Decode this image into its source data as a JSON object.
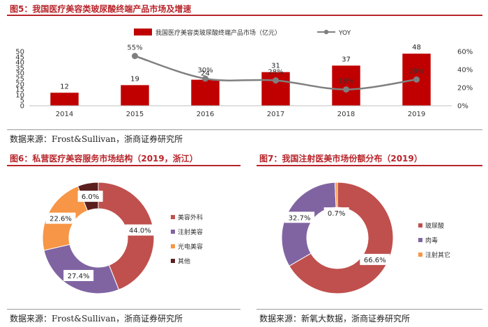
{
  "figures": {
    "fig5": {
      "title": "图5：我国医疗美容类玻尿酸终端产品市场及增速",
      "source": "数据来源：Frost&Sullivan，浙商证券研究所"
    },
    "fig6": {
      "title": "图6：私营医疗美容服务市场结构（2019，浙江）",
      "source": "数据来源：Frost&Sullivan，浙商证券研究所"
    },
    "fig7": {
      "title": "图7：我国注射医美市场份额分布（2019）",
      "source": "数据来源：新氧大数据，浙商证券研究所"
    }
  },
  "chart_data": [
    {
      "type": "bar",
      "categories": [
        "2014",
        "2015",
        "2016",
        "2017",
        "2018",
        "2019"
      ],
      "series": [
        {
          "name": "我国医疗美容类玻尿酸终端产品市场（亿元）",
          "kind": "bar",
          "axis": "left",
          "values": [
            12,
            19,
            24,
            31,
            37,
            48
          ],
          "labels": [
            "12",
            "19",
            "24",
            "31",
            "37",
            "48"
          ],
          "color": "#c00000"
        },
        {
          "name": "YOY",
          "kind": "line",
          "axis": "right",
          "values": [
            null,
            55,
            30,
            28,
            18,
            29
          ],
          "labels": [
            "",
            "55%",
            "30%",
            "28%",
            "18%",
            "29%"
          ],
          "color": "#7f7f7f"
        }
      ],
      "y_left": {
        "min": 0,
        "max": 50,
        "ticks": [
          "0",
          "5",
          "10",
          "15",
          "20",
          "25",
          "30",
          "35",
          "40",
          "45",
          "50"
        ]
      },
      "y_right": {
        "min": 0,
        "max": 60,
        "ticks": [
          "0%",
          "20%",
          "40%",
          "60%"
        ]
      },
      "legend_position": "top",
      "grid": false
    },
    {
      "type": "pie",
      "donut": true,
      "categories": [
        "美容外科",
        "注射美容",
        "光电美容",
        "其他"
      ],
      "values": [
        44.0,
        27.4,
        22.6,
        6.0
      ],
      "labels": [
        "44.0%",
        "27.4%",
        "22.6%",
        "6.0%"
      ],
      "colors": [
        "#c0504d",
        "#8064a2",
        "#f79646",
        "#5c1f1f"
      ],
      "legend_position": "right"
    },
    {
      "type": "pie",
      "donut": true,
      "categories": [
        "玻尿酸",
        "肉毒",
        "注射其它"
      ],
      "values": [
        66.6,
        32.7,
        0.7
      ],
      "labels": [
        "66.6%",
        "32.7%",
        "0.7%"
      ],
      "colors": [
        "#c0504d",
        "#8064a2",
        "#f79646"
      ],
      "legend_position": "right"
    }
  ]
}
